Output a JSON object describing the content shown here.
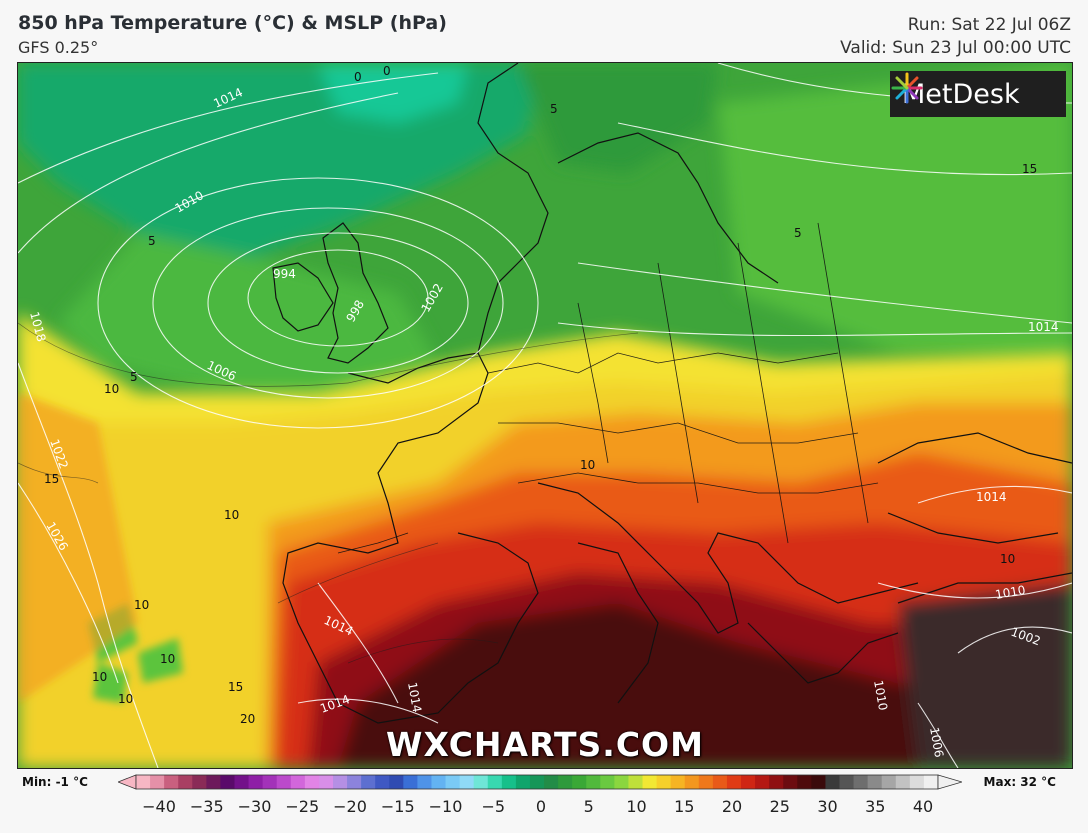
{
  "header": {
    "title": "850 hPa Temperature (°C) & MSLP (hPa)",
    "model": "GFS 0.25°",
    "run": "Run: Sat 22 Jul 06Z",
    "valid": "Valid: Sun 23 Jul 00:00 UTC"
  },
  "brand": {
    "logo_text": "MetDesk",
    "watermark": "WXCHARTS.COM"
  },
  "legend": {
    "min_label": "Min: -1 °C",
    "max_label": "Max: 32 °C",
    "ticks": [
      "−40",
      "−35",
      "−30",
      "−25",
      "−20",
      "−15",
      "−10",
      "−5",
      "0",
      "5",
      "10",
      "15",
      "20",
      "25",
      "30",
      "35",
      "40"
    ],
    "colors": [
      "#f7b7c4",
      "#e590a8",
      "#c9607f",
      "#a93f63",
      "#8a2b57",
      "#6d1a5b",
      "#5a0a6a",
      "#73118a",
      "#8e1fa6",
      "#a332b9",
      "#bb4acb",
      "#d266db",
      "#e284e6",
      "#d88ee8",
      "#b58fe4",
      "#8c83dc",
      "#5d6fd0",
      "#3f58c3",
      "#2f4bb2",
      "#3a6fd6",
      "#4f93e8",
      "#63b3f2",
      "#7acaf6",
      "#8fdaf7",
      "#6fe6d7",
      "#38d8b0",
      "#16c08a",
      "#0fa56c",
      "#169658",
      "#228c47",
      "#2e9a3c",
      "#3aa836",
      "#51b93c",
      "#6ac940",
      "#8bd63f",
      "#bfe03a",
      "#f2e833",
      "#f6d02a",
      "#f6b423",
      "#f3971e",
      "#ef781b",
      "#e95a18",
      "#e03b15",
      "#cf2614",
      "#b41813",
      "#8f1012",
      "#6c0c10",
      "#4e0a0c",
      "#3a0a0b",
      "#3a3a3a",
      "#555555",
      "#6e6e6e",
      "#8a8a8a",
      "#a6a6a6",
      "#c2c2c2",
      "#dcdcdc",
      "#f0f0f0"
    ]
  },
  "map_labels": {
    "isobars": [
      "1014",
      "1010",
      "1018",
      "1022",
      "1026",
      "1006",
      "1002",
      "998",
      "994",
      "1014",
      "1014",
      "1014",
      "1014",
      "1014",
      "1010",
      "1002",
      "1006",
      "1010"
    ],
    "isotherms": [
      "0",
      "0",
      "5",
      "5",
      "5",
      "5",
      "10",
      "10",
      "15",
      "10",
      "10",
      "10",
      "10",
      "10",
      "15",
      "20",
      "10",
      "15"
    ]
  },
  "colors": {
    "cold_sea": "#10b07a",
    "green": "#3ea53a",
    "light_green": "#5cc43e",
    "yellow": "#f4e231",
    "orange": "#f39a1f",
    "red": "#d8301a",
    "dark_red": "#7a0f12",
    "darkest": "#3e0b0c",
    "grey": "#3a3a3a"
  }
}
